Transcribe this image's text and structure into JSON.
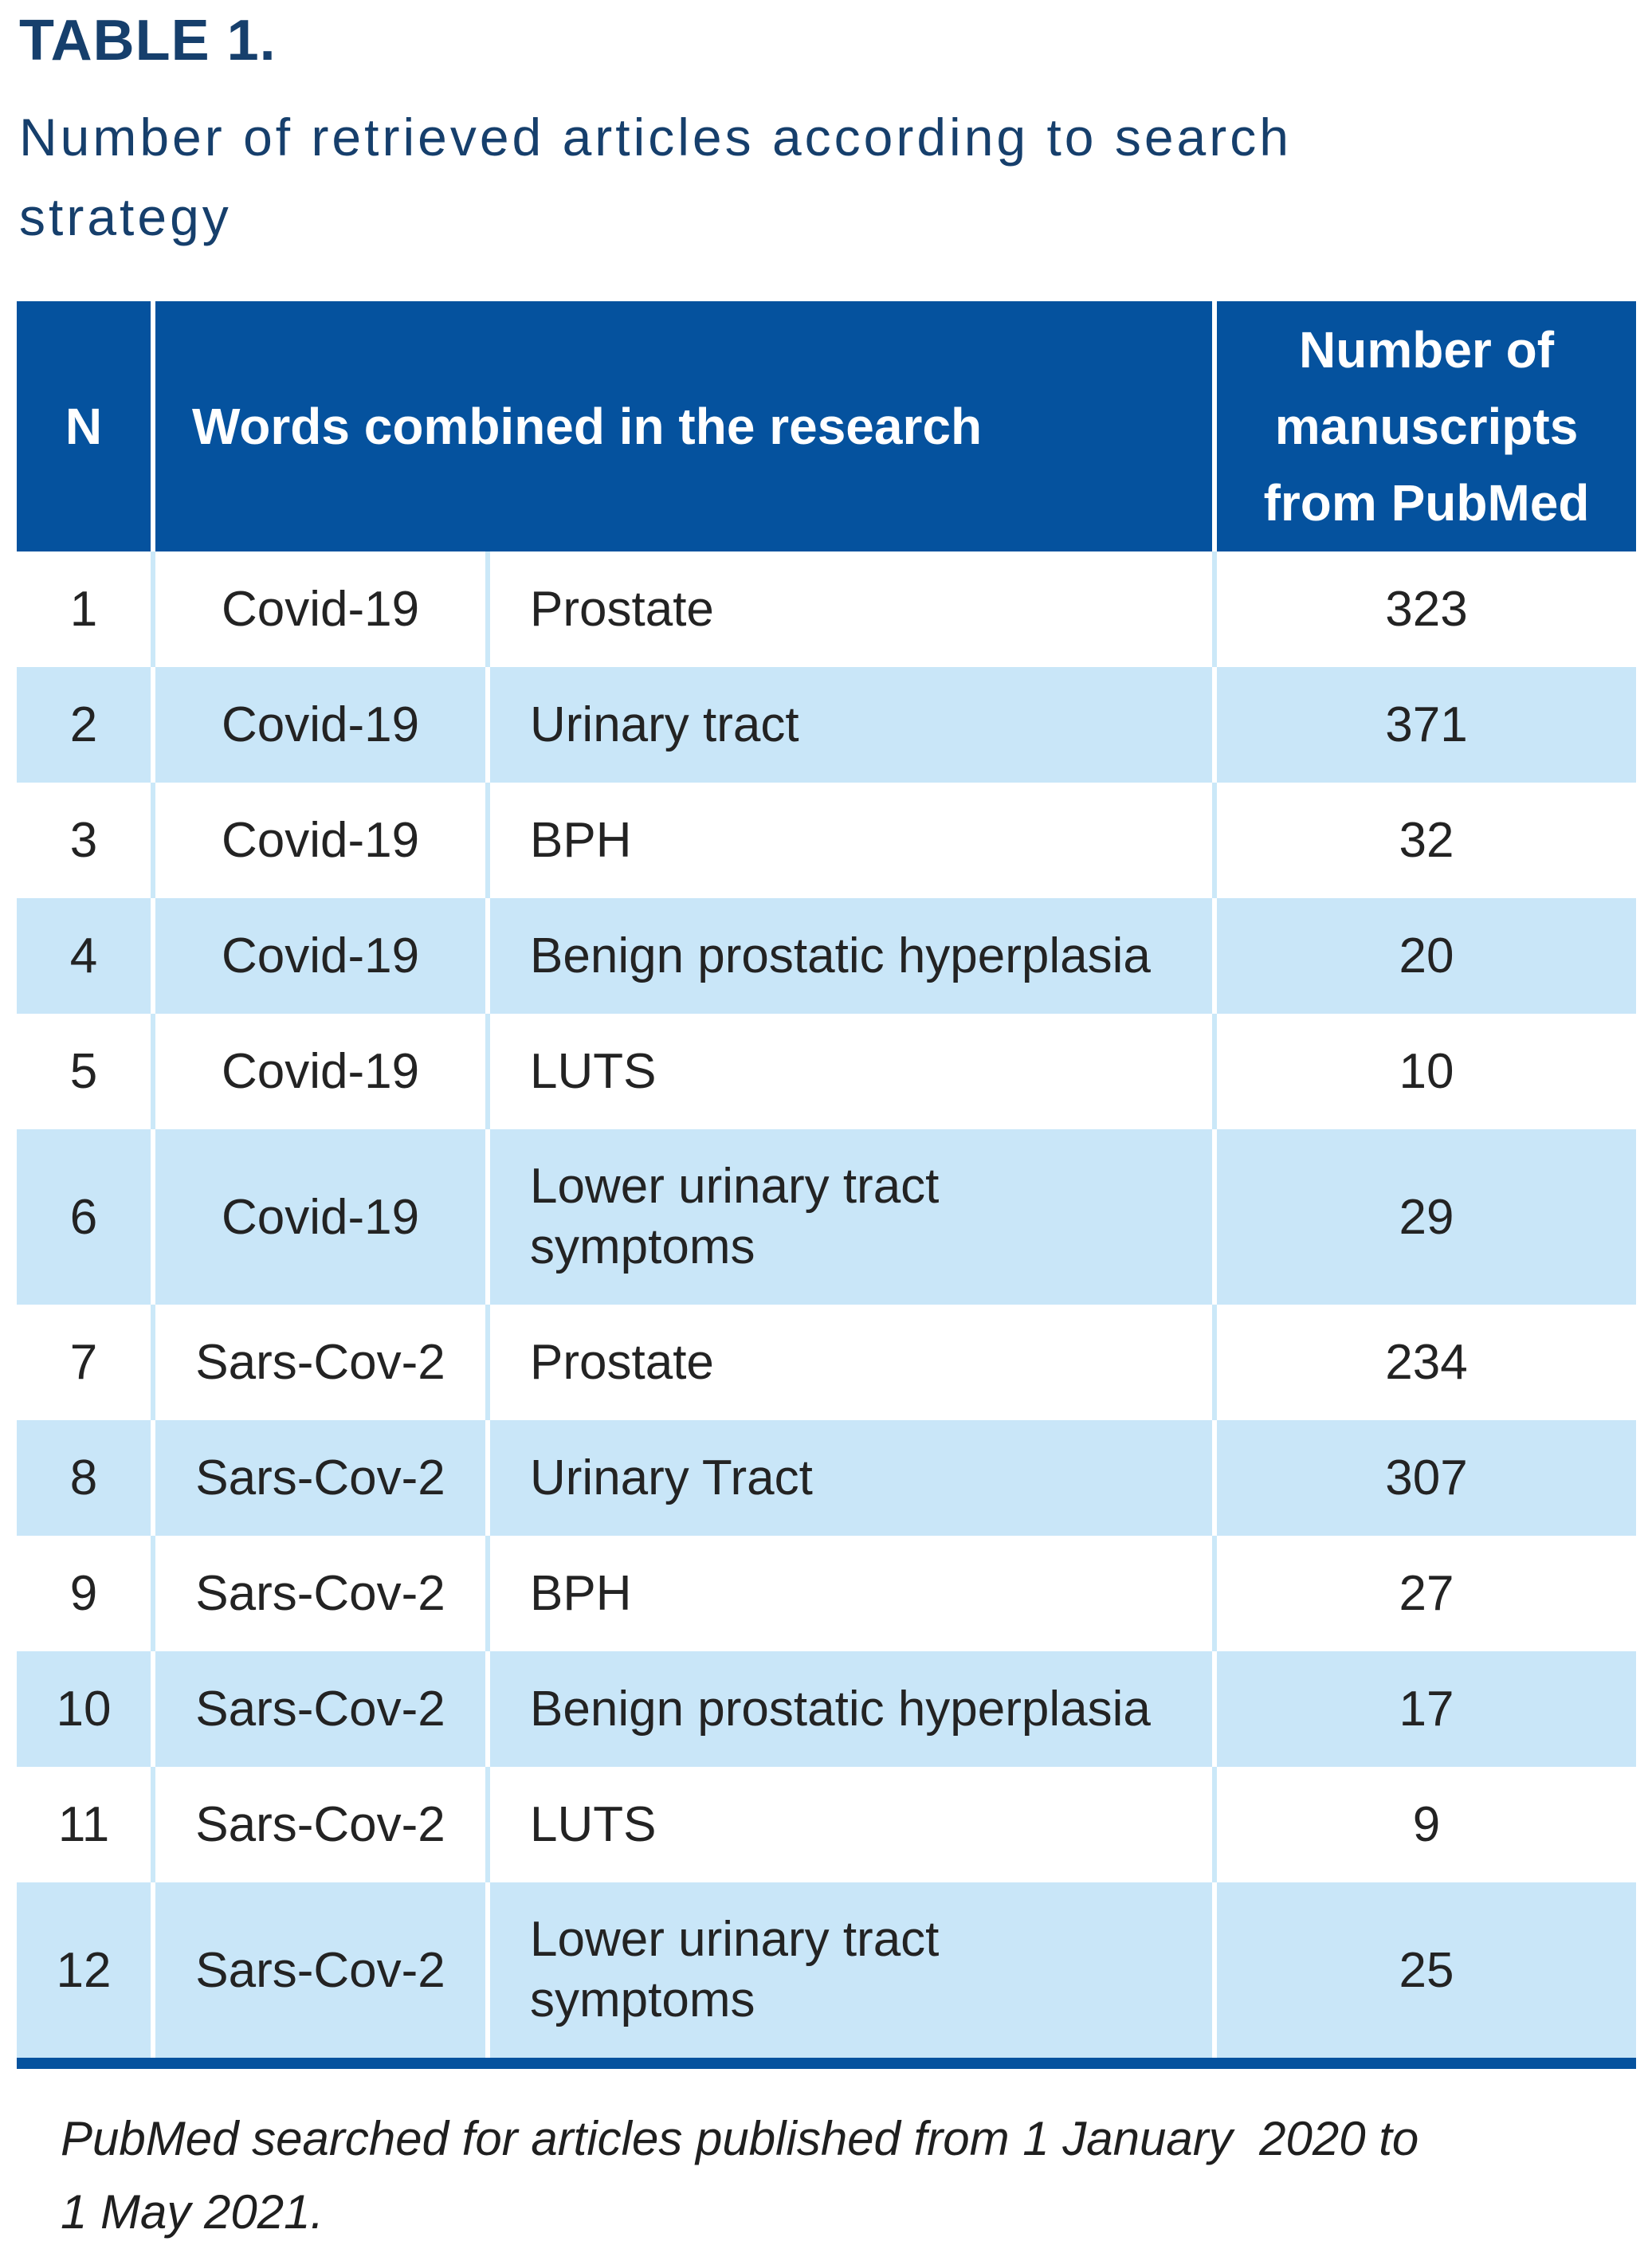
{
  "colors": {
    "header_blue": "#05529E",
    "row_blue": "#C9E6F8",
    "divider_blue": "#CBE8F8",
    "title_navy": "#163F6C",
    "text_dark": "#232323"
  },
  "title": {
    "label": "TABLE 1.",
    "subtitle": "Number of retrieved articles according to search\nstrategy"
  },
  "table": {
    "headers": {
      "n": "N",
      "words": "Words combined in the research",
      "count": "Number of\nmanuscripts\nfrom PubMed"
    },
    "rows": [
      {
        "n": "1",
        "word1": "Covid-19",
        "word2": "Prostate",
        "count": "323"
      },
      {
        "n": "2",
        "word1": "Covid-19",
        "word2": "Urinary tract",
        "count": "371"
      },
      {
        "n": "3",
        "word1": "Covid-19",
        "word2": "BPH",
        "count": "32"
      },
      {
        "n": "4",
        "word1": "Covid-19",
        "word2": "Benign prostatic hyperplasia",
        "count": "20"
      },
      {
        "n": "5",
        "word1": "Covid-19",
        "word2": "LUTS",
        "count": "10"
      },
      {
        "n": "6",
        "word1": "Covid-19",
        "word2": "Lower urinary tract\nsymptoms",
        "count": "29"
      },
      {
        "n": "7",
        "word1": "Sars-Cov-2",
        "word2": "Prostate",
        "count": "234"
      },
      {
        "n": "8",
        "word1": "Sars-Cov-2",
        "word2": "Urinary Tract",
        "count": "307"
      },
      {
        "n": "9",
        "word1": "Sars-Cov-2",
        "word2": "BPH",
        "count": "27"
      },
      {
        "n": "10",
        "word1": "Sars-Cov-2",
        "word2": "Benign prostatic hyperplasia",
        "count": "17"
      },
      {
        "n": "11",
        "word1": "Sars-Cov-2",
        "word2": "LUTS",
        "count": "9"
      },
      {
        "n": "12",
        "word1": "Sars-Cov-2",
        "word2": "Lower urinary tract\nsymptoms",
        "count": "25"
      }
    ]
  },
  "footnote": "PubMed searched for articles published from 1 January  2020 to\n1 May 2021."
}
